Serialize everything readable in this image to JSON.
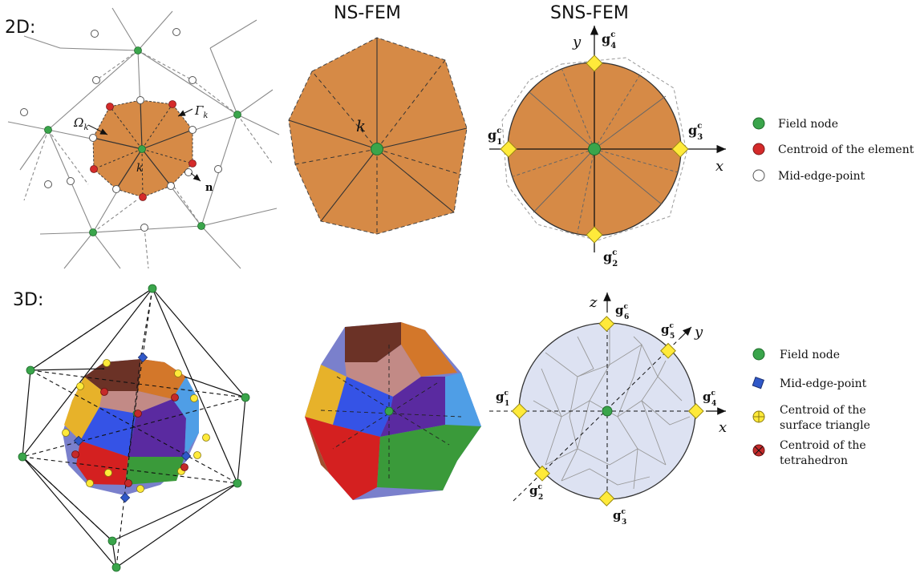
{
  "headers": {
    "row_2d": "2D:",
    "row_3d": "3D:",
    "col_ns": "NS-FEM",
    "col_sns": "SNS-FEM"
  },
  "labels_2d": {
    "omega": "Ω",
    "omega_sub": "k",
    "gamma": "Γ",
    "gamma_sub": "k",
    "k": "k",
    "n": "n",
    "k_ns": "k"
  },
  "axes_2d": {
    "x": "x",
    "y": "y"
  },
  "axes_3d": {
    "x": "x",
    "y": "y",
    "z": "z"
  },
  "g_points_2d": [
    {
      "main": "g",
      "sup": "c",
      "sub": "1"
    },
    {
      "main": "g",
      "sup": "c",
      "sub": "2"
    },
    {
      "main": "g",
      "sup": "c",
      "sub": "3"
    },
    {
      "main": "g",
      "sup": "c",
      "sub": "4"
    }
  ],
  "g_points_3d": [
    {
      "main": "g",
      "sup": "c",
      "sub": "1"
    },
    {
      "main": "g",
      "sup": "c",
      "sub": "2"
    },
    {
      "main": "g",
      "sup": "c",
      "sub": "3"
    },
    {
      "main": "g",
      "sup": "c",
      "sub": "4"
    },
    {
      "main": "g",
      "sup": "c",
      "sub": "5"
    },
    {
      "main": "g",
      "sup": "c",
      "sub": "6"
    }
  ],
  "legend_2d": [
    {
      "label": "Field node",
      "marker": "green-circle",
      "color": "#3aa54b"
    },
    {
      "label": "Centroid of the element",
      "marker": "red-circle",
      "color": "#d42a2a"
    },
    {
      "label": "Mid-edge-point",
      "marker": "white-circle",
      "color": "#ffffff"
    }
  ],
  "legend_3d": [
    {
      "label": "Field node",
      "marker": "green-circle",
      "color": "#3aa54b"
    },
    {
      "label": "Mid-edge-point",
      "marker": "blue-square",
      "color": "#3058c8"
    },
    {
      "label": "Centroid of the",
      "label2": "surface triangle",
      "marker": "yellow-cross-circle",
      "color": "#f4e33a"
    },
    {
      "label": "Centroid of the",
      "label2": "tetrahedron",
      "marker": "red-cross-circle",
      "color": "#c42a2a"
    }
  ],
  "colors": {
    "orange": "#d68a46",
    "sphere": "#dde2f2",
    "green": "#3aa54b",
    "yellow": "#ffea3a"
  }
}
